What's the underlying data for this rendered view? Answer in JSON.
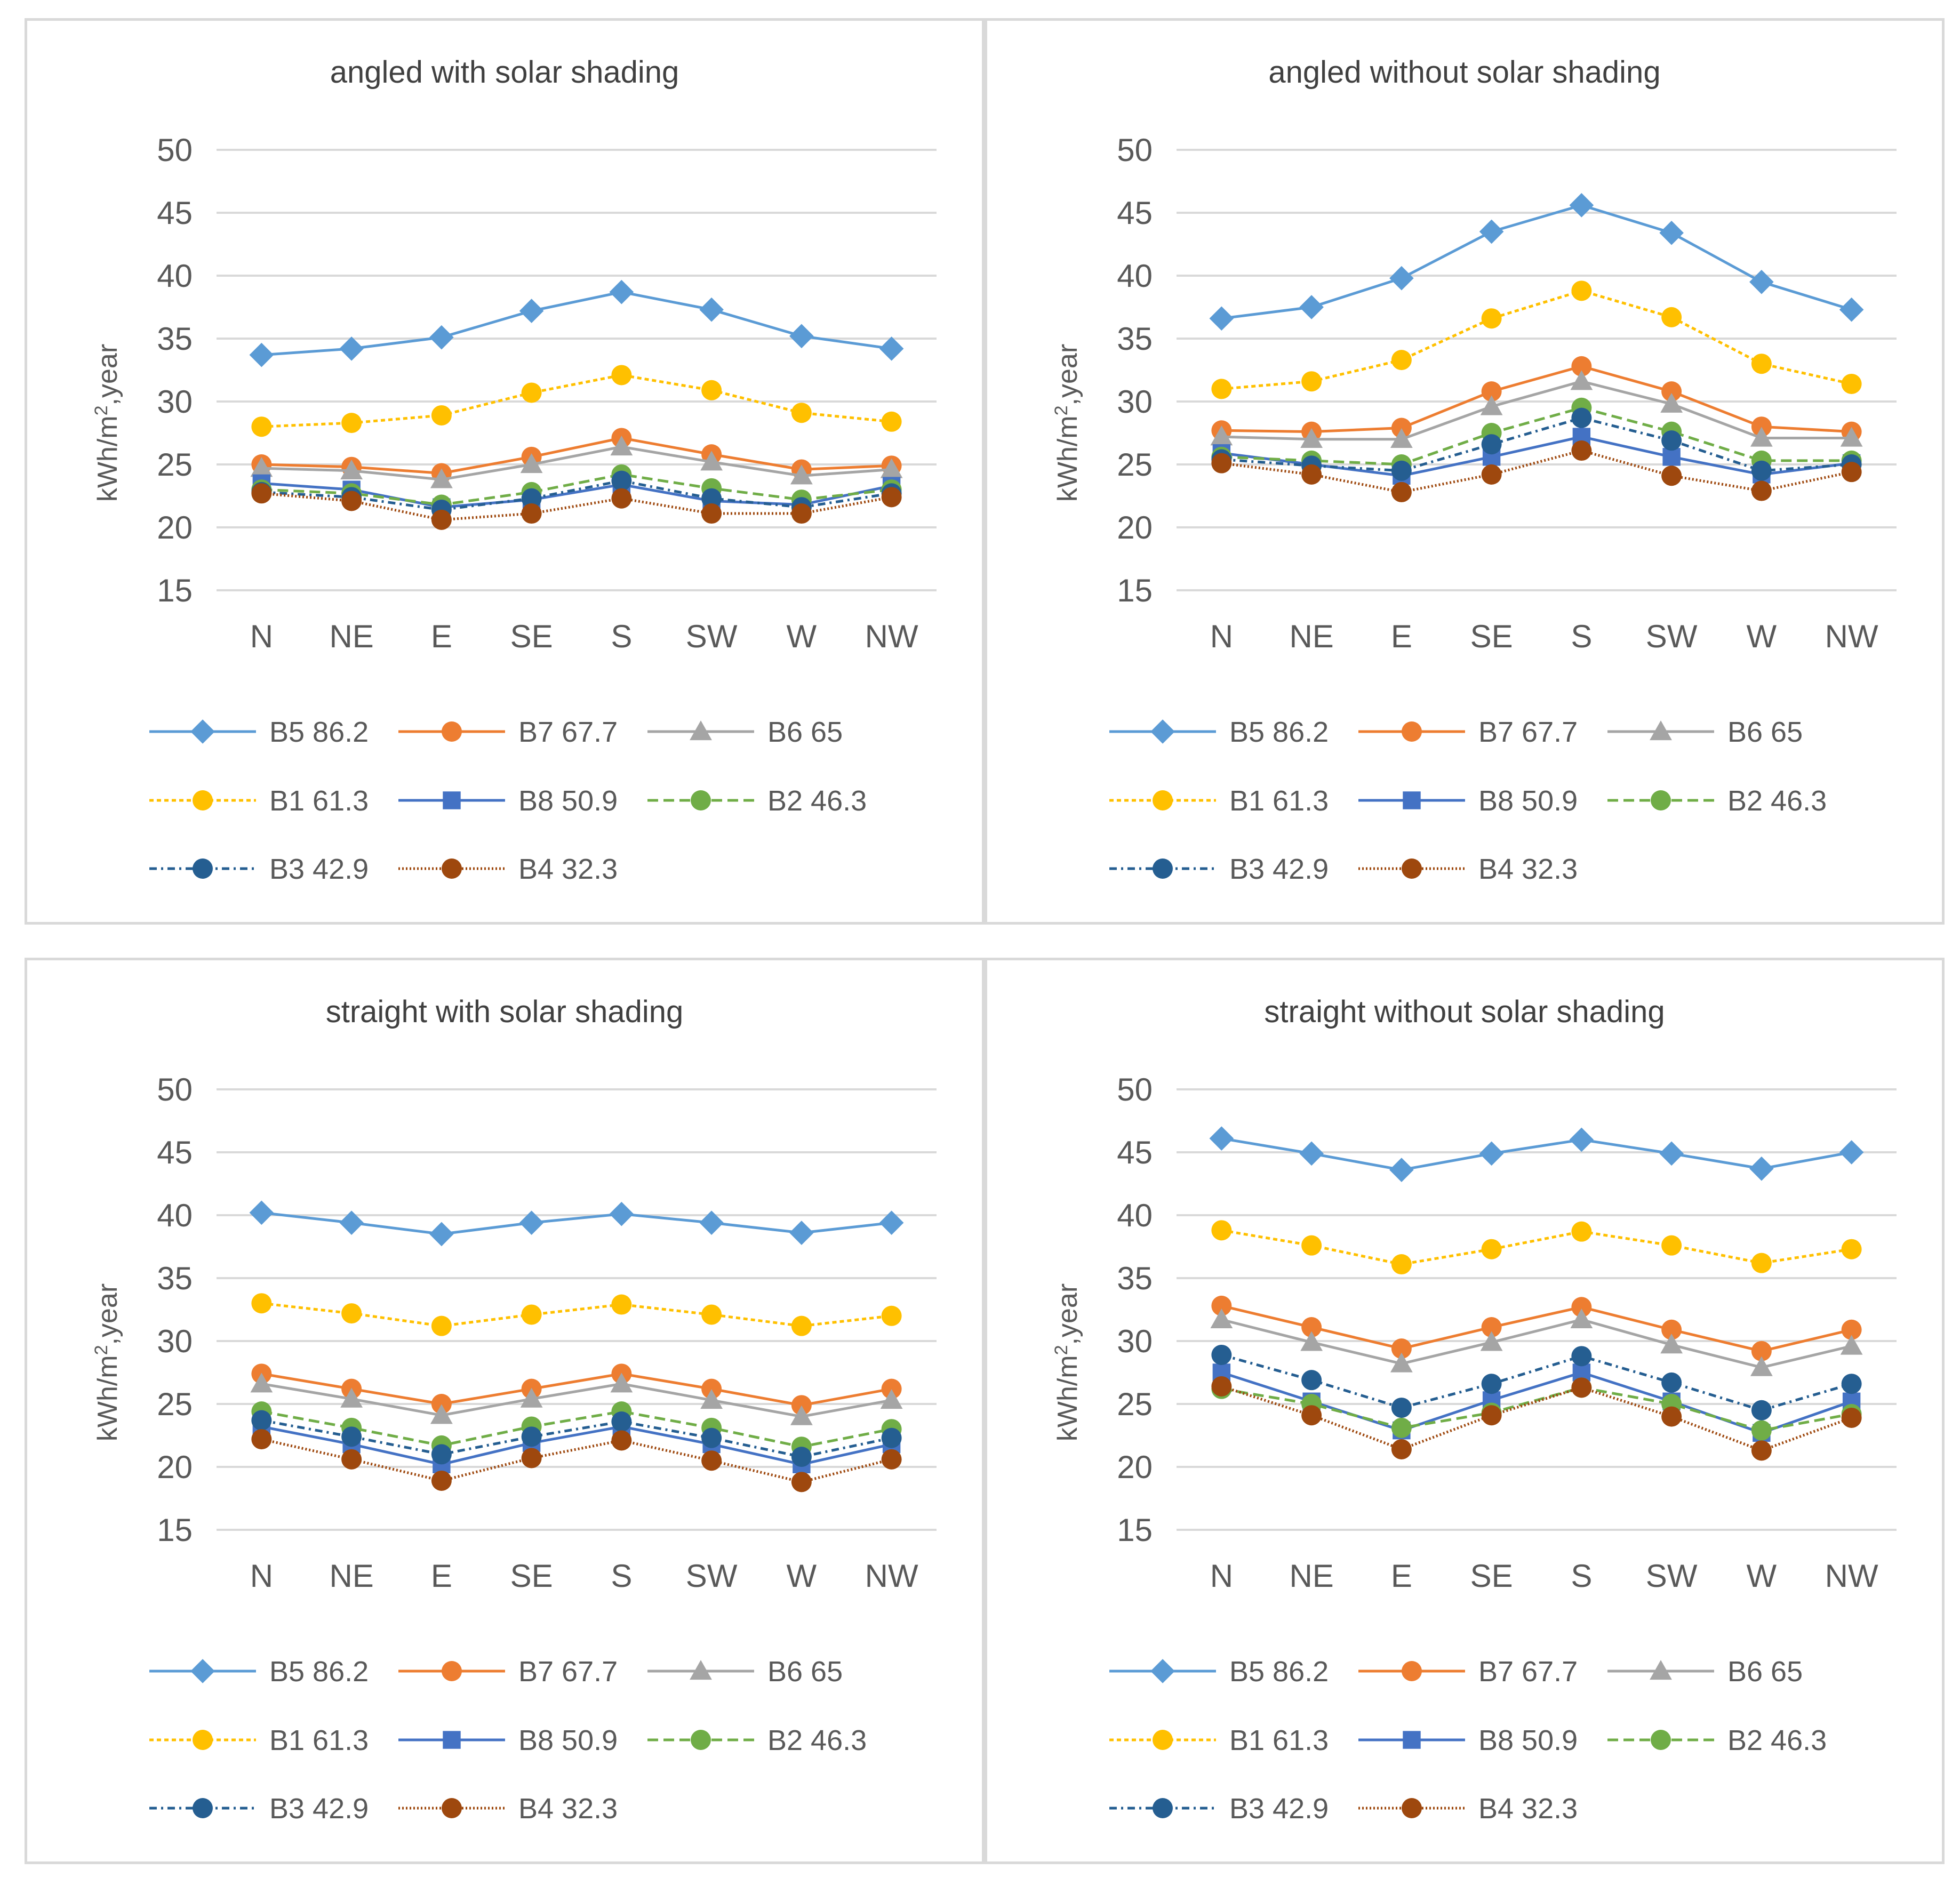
{
  "series_styles": [
    {
      "name": "B5 86.2",
      "color": "#5b9bd5",
      "marker": "diamond",
      "dash": ""
    },
    {
      "name": "B7 67.7",
      "color": "#ed7d31",
      "marker": "circle",
      "dash": ""
    },
    {
      "name": "B6 65",
      "color": "#a5a5a5",
      "marker": "triangle",
      "dash": ""
    },
    {
      "name": "B1 61.3",
      "color": "#ffc000",
      "marker": "circle",
      "dash": "8,6"
    },
    {
      "name": "B8 50.9",
      "color": "#4472c4",
      "marker": "square",
      "dash": ""
    },
    {
      "name": "B2 46.3",
      "color": "#70ad47",
      "marker": "circle",
      "dash": "20,10"
    },
    {
      "name": "B3 42.9",
      "color": "#255e91",
      "marker": "circle",
      "dash": "14,8,4,8"
    },
    {
      "name": "B4 32.3",
      "color": "#9e480e",
      "marker": "circle",
      "dash": "3,4"
    }
  ],
  "chart_data": [
    {
      "type": "line",
      "title": "angled with solar shading",
      "ylabel": "kWh/m2,year",
      "ylim": [
        15,
        50
      ],
      "yticks": [
        "15",
        "20",
        "25",
        "30",
        "35",
        "40",
        "45",
        "50"
      ],
      "categories": [
        "N",
        "NE",
        "E",
        "SE",
        "S",
        "SW",
        "W",
        "NW"
      ],
      "series": [
        {
          "name": "B5 86.2",
          "values": [
            33.7,
            34.2,
            35.1,
            37.2,
            38.7,
            37.3,
            35.2,
            34.2
          ]
        },
        {
          "name": "B7 67.7",
          "values": [
            25.0,
            24.8,
            24.3,
            25.6,
            27.1,
            25.8,
            24.6,
            24.9
          ]
        },
        {
          "name": "B6 65",
          "values": [
            24.7,
            24.5,
            23.8,
            25.0,
            26.4,
            25.2,
            24.1,
            24.6
          ]
        },
        {
          "name": "B1 61.3",
          "values": [
            28.0,
            28.3,
            28.9,
            30.7,
            32.1,
            30.9,
            29.1,
            28.4
          ]
        },
        {
          "name": "B8 50.9",
          "values": [
            23.5,
            23.0,
            21.6,
            22.2,
            23.4,
            22.1,
            21.8,
            23.3
          ]
        },
        {
          "name": "B2 46.3",
          "values": [
            23.0,
            22.7,
            21.8,
            22.8,
            24.2,
            23.1,
            22.2,
            23.0
          ]
        },
        {
          "name": "B3 42.9",
          "values": [
            22.8,
            22.4,
            21.4,
            22.3,
            23.7,
            22.3,
            21.6,
            22.7
          ]
        },
        {
          "name": "B4 32.3",
          "values": [
            22.7,
            22.1,
            20.6,
            21.1,
            22.3,
            21.1,
            21.1,
            22.4
          ]
        }
      ]
    },
    {
      "type": "line",
      "title": "angled without solar shading",
      "ylabel": "kWh/m2,year",
      "ylim": [
        15,
        50
      ],
      "yticks": [
        "15",
        "20",
        "25",
        "30",
        "35",
        "40",
        "45",
        "50"
      ],
      "categories": [
        "N",
        "NE",
        "E",
        "SE",
        "S",
        "SW",
        "W",
        "NW"
      ],
      "series": [
        {
          "name": "B5 86.2",
          "values": [
            36.6,
            37.5,
            39.8,
            43.5,
            45.6,
            43.4,
            39.5,
            37.3
          ]
        },
        {
          "name": "B7 67.7",
          "values": [
            27.7,
            27.6,
            27.9,
            30.8,
            32.8,
            30.8,
            28.0,
            27.6
          ]
        },
        {
          "name": "B6 65",
          "values": [
            27.2,
            27.0,
            27.0,
            29.6,
            31.6,
            29.8,
            27.1,
            27.1
          ]
        },
        {
          "name": "B1 61.3",
          "values": [
            31.0,
            31.6,
            33.3,
            36.6,
            38.8,
            36.7,
            33.0,
            31.4
          ]
        },
        {
          "name": "B8 50.9",
          "values": [
            25.9,
            25.0,
            24.1,
            25.6,
            27.2,
            25.6,
            24.2,
            25.1
          ]
        },
        {
          "name": "B2 46.3",
          "values": [
            25.6,
            25.3,
            25.0,
            27.5,
            29.5,
            27.6,
            25.3,
            25.3
          ]
        },
        {
          "name": "B3 42.9",
          "values": [
            25.4,
            24.9,
            24.5,
            26.6,
            28.7,
            26.9,
            24.5,
            25.0
          ]
        },
        {
          "name": "B4 32.3",
          "values": [
            25.1,
            24.2,
            22.8,
            24.2,
            26.1,
            24.1,
            22.9,
            24.4
          ]
        }
      ]
    },
    {
      "type": "line",
      "title": "straight with solar shading",
      "ylabel": "kWh/m2,year",
      "ylim": [
        15,
        50
      ],
      "yticks": [
        "15",
        "20",
        "25",
        "30",
        "35",
        "40",
        "45",
        "50"
      ],
      "categories": [
        "N",
        "NE",
        "E",
        "SE",
        "S",
        "SW",
        "W",
        "NW"
      ],
      "series": [
        {
          "name": "B5 86.2",
          "values": [
            40.2,
            39.4,
            38.5,
            39.4,
            40.1,
            39.4,
            38.6,
            39.4
          ]
        },
        {
          "name": "B7 67.7",
          "values": [
            27.4,
            26.2,
            25.0,
            26.2,
            27.4,
            26.2,
            24.9,
            26.2
          ]
        },
        {
          "name": "B6 65",
          "values": [
            26.6,
            25.4,
            24.1,
            25.4,
            26.6,
            25.3,
            24.0,
            25.3
          ]
        },
        {
          "name": "B1 61.3",
          "values": [
            33.0,
            32.2,
            31.2,
            32.1,
            32.9,
            32.1,
            31.2,
            32.0
          ]
        },
        {
          "name": "B8 50.9",
          "values": [
            23.2,
            21.8,
            20.2,
            21.9,
            23.2,
            21.8,
            20.2,
            21.8
          ]
        },
        {
          "name": "B2 46.3",
          "values": [
            24.4,
            23.1,
            21.7,
            23.2,
            24.4,
            23.1,
            21.6,
            23.0
          ]
        },
        {
          "name": "B3 42.9",
          "values": [
            23.7,
            22.4,
            21.0,
            22.4,
            23.6,
            22.3,
            20.8,
            22.3
          ]
        },
        {
          "name": "B4 32.3",
          "values": [
            22.2,
            20.6,
            18.9,
            20.7,
            22.1,
            20.5,
            18.8,
            20.6
          ]
        }
      ]
    },
    {
      "type": "line",
      "title": "straight without solar shading",
      "ylabel": "kWh/m2,year",
      "ylim": [
        15,
        50
      ],
      "yticks": [
        "15",
        "20",
        "25",
        "30",
        "35",
        "40",
        "45",
        "50"
      ],
      "categories": [
        "N",
        "NE",
        "E",
        "SE",
        "S",
        "SW",
        "W",
        "NW"
      ],
      "series": [
        {
          "name": "B5 86.2",
          "values": [
            46.1,
            44.9,
            43.6,
            44.9,
            46.0,
            44.9,
            43.7,
            45.0
          ]
        },
        {
          "name": "B7 67.7",
          "values": [
            32.8,
            31.1,
            29.4,
            31.1,
            32.7,
            30.9,
            29.2,
            30.9
          ]
        },
        {
          "name": "B6 65",
          "values": [
            31.7,
            29.9,
            28.2,
            29.9,
            31.7,
            29.7,
            27.9,
            29.6
          ]
        },
        {
          "name": "B1 61.3",
          "values": [
            38.8,
            37.6,
            36.1,
            37.3,
            38.7,
            37.6,
            36.2,
            37.3
          ]
        },
        {
          "name": "B8 50.9",
          "values": [
            27.5,
            25.2,
            22.9,
            25.3,
            27.5,
            25.2,
            22.7,
            25.2
          ]
        },
        {
          "name": "B2 46.3",
          "values": [
            26.2,
            25.0,
            23.1,
            24.3,
            26.3,
            25.0,
            22.9,
            24.2
          ]
        },
        {
          "name": "B3 42.9",
          "values": [
            28.9,
            26.9,
            24.7,
            26.6,
            28.8,
            26.7,
            24.5,
            26.6
          ]
        },
        {
          "name": "B4 32.3",
          "values": [
            26.4,
            24.1,
            21.4,
            24.1,
            26.3,
            24.0,
            21.3,
            23.9
          ]
        }
      ]
    }
  ]
}
